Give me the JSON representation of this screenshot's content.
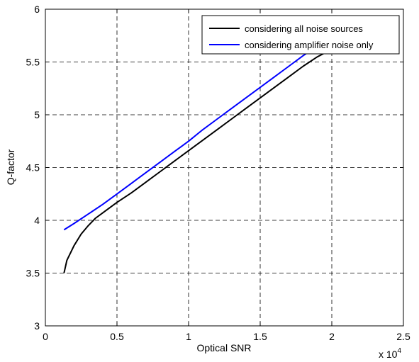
{
  "chart_data": {
    "type": "line",
    "xlabel": "Optical SNR",
    "ylabel": "Q-factor",
    "x_exponent_label": "x 10",
    "x_exponent_power": "4",
    "xlim": [
      0,
      25000
    ],
    "ylim": [
      3,
      6
    ],
    "xticks": [
      0,
      5000,
      10000,
      15000,
      20000,
      25000
    ],
    "xtick_labels": [
      "0",
      "0.5",
      "1",
      "1.5",
      "2",
      "2.5"
    ],
    "yticks": [
      3,
      3.5,
      4,
      4.5,
      5,
      5.5,
      6
    ],
    "ytick_labels": [
      "3",
      "3.5",
      "4",
      "4.5",
      "5",
      "5.5",
      "6"
    ],
    "grid": true,
    "legend_position": "top-right",
    "series": [
      {
        "name": "considering all noise sources",
        "color": "#000000",
        "x": [
          1300,
          1500,
          2000,
          2500,
          3000,
          3500,
          4000,
          5000,
          6000,
          7000,
          8000,
          9000,
          10000,
          11000,
          12000,
          13000,
          14000,
          15000,
          16000,
          17000,
          18000,
          19000,
          20000
        ],
        "y": [
          3.5,
          3.62,
          3.76,
          3.87,
          3.95,
          4.02,
          4.07,
          4.17,
          4.26,
          4.36,
          4.46,
          4.56,
          4.66,
          4.76,
          4.86,
          4.96,
          5.06,
          5.16,
          5.26,
          5.36,
          5.46,
          5.55,
          5.62
        ]
      },
      {
        "name": "considering amplifier noise only",
        "color": "#0000ff",
        "x": [
          1300,
          2000,
          3000,
          4000,
          5000,
          6000,
          7000,
          8000,
          9000,
          10000,
          11000,
          12000,
          13000,
          14000,
          15000,
          16000,
          17000,
          18000,
          19000,
          19600
        ],
        "y": [
          3.91,
          3.97,
          4.06,
          4.15,
          4.25,
          4.35,
          4.45,
          4.55,
          4.65,
          4.75,
          4.86,
          4.96,
          5.06,
          5.16,
          5.26,
          5.36,
          5.46,
          5.56,
          5.65,
          5.7
        ]
      }
    ]
  }
}
